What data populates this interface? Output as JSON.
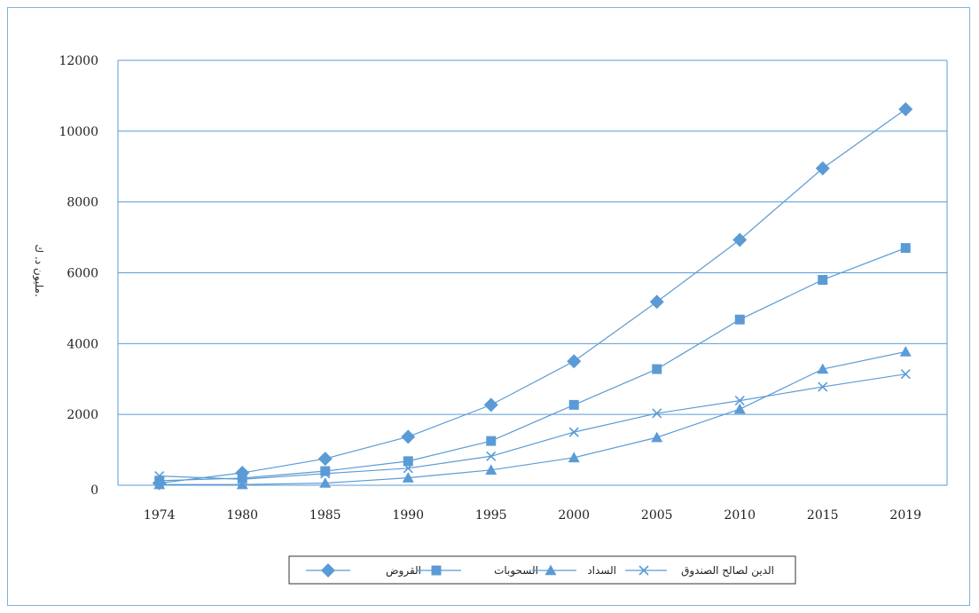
{
  "chart_data": {
    "type": "line",
    "categories": [
      "1974",
      "1980",
      "1985",
      "1990",
      "1995",
      "2000",
      "2005",
      "2010",
      "2015",
      "2019"
    ],
    "ylabel": "مليون د. ك.",
    "xlabel": "",
    "title": "",
    "ylim": [
      0,
      12000
    ],
    "yticks": [
      0,
      2000,
      4000,
      6000,
      8000,
      10000,
      12000
    ],
    "grid": true,
    "legend_position": "bottom",
    "series": [
      {
        "name": "القروض",
        "marker": "diamond",
        "values": [
          60,
          350,
          750,
          1370,
          2270,
          3500,
          5180,
          6930,
          8950,
          10620
        ]
      },
      {
        "name": "السحوبات",
        "marker": "square",
        "values": [
          130,
          200,
          400,
          680,
          1250,
          2270,
          3280,
          4680,
          5800,
          6700
        ]
      },
      {
        "name": "السداد",
        "marker": "triangle",
        "values": [
          20,
          20,
          60,
          210,
          430,
          780,
          1350,
          2150,
          3280,
          3770
        ]
      },
      {
        "name": "الدين لصالح الصندوق",
        "marker": "x",
        "values": [
          260,
          170,
          330,
          480,
          820,
          1500,
          2030,
          2390,
          2780,
          3140
        ]
      }
    ]
  },
  "colors": {
    "series": "#5b9bd5",
    "grid": "#5b9bd5",
    "frame": "#7fb2dc"
  }
}
